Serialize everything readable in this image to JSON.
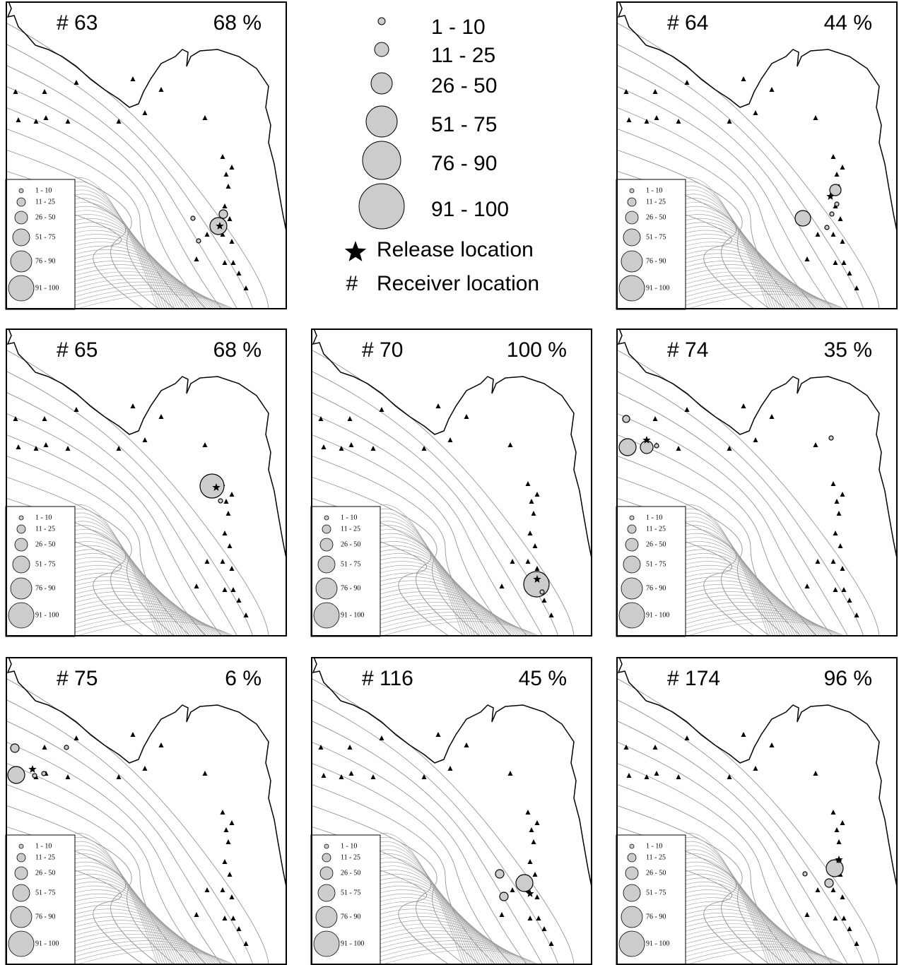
{
  "legend": {
    "classes": [
      "1 - 10",
      "11 - 25",
      "26 - 50",
      "51 - 75",
      "76 - 90",
      "91 - 100"
    ],
    "release": "Release location",
    "receiver_symbol": "#",
    "receiver": "Receiver location"
  },
  "panels": [
    {
      "receiver": "# 63",
      "percent": "68 %"
    },
    {
      "receiver": "# 64",
      "percent": "44 %"
    },
    {
      "receiver": "# 65",
      "percent": "68 %"
    },
    {
      "receiver": "# 70",
      "percent": "100 %"
    },
    {
      "receiver": "# 74",
      "percent": "35 %"
    },
    {
      "receiver": "# 75",
      "percent": "6 %"
    },
    {
      "receiver": "# 116",
      "percent": "45 %"
    },
    {
      "receiver": "# 174",
      "percent": "96 %"
    }
  ]
}
